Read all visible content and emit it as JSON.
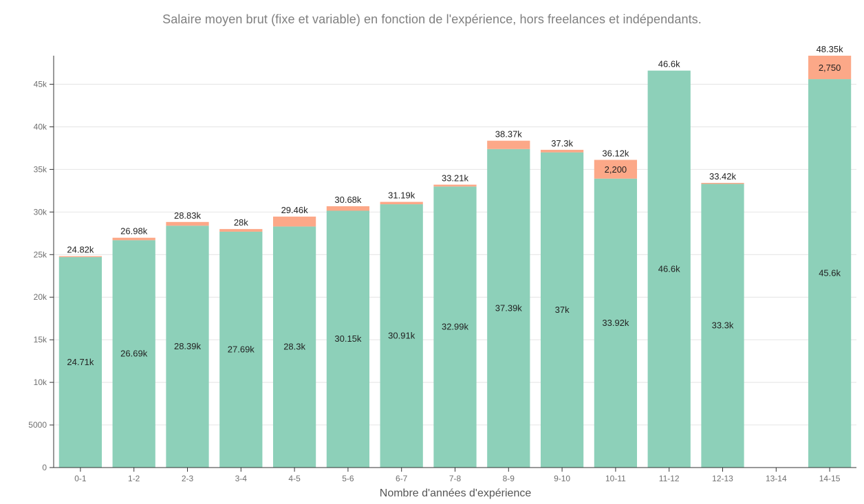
{
  "chart_data": {
    "type": "bar",
    "stacked": true,
    "title": "Salaire moyen brut (fixe et variable) en fonction de l'expérience, hors freelances et indépendants.",
    "xlabel": "Nombre d'années d'expérience",
    "ylabel": "",
    "ylim": [
      0,
      48350
    ],
    "y_ticks": [
      {
        "value": 0,
        "label": "0"
      },
      {
        "value": 5000,
        "label": "5000"
      },
      {
        "value": 10000,
        "label": "10k"
      },
      {
        "value": 15000,
        "label": "15k"
      },
      {
        "value": 20000,
        "label": "20k"
      },
      {
        "value": 25000,
        "label": "25k"
      },
      {
        "value": 30000,
        "label": "30k"
      },
      {
        "value": 35000,
        "label": "35k"
      },
      {
        "value": 40000,
        "label": "40k"
      },
      {
        "value": 45000,
        "label": "45k"
      }
    ],
    "grid": true,
    "colors": {
      "fixed": "#8dd0b9",
      "variable": "#fca888",
      "grid": "#e4e4e4",
      "axis": "#333333"
    },
    "categories": [
      "0-1",
      "1-2",
      "2-3",
      "3-4",
      "4-5",
      "5-6",
      "6-7",
      "7-8",
      "8-9",
      "9-10",
      "10-11",
      "11-12",
      "12-13",
      "13-14",
      "14-15"
    ],
    "series": [
      {
        "key": "fixed",
        "values": [
          24710,
          26690,
          28390,
          27690,
          28300,
          30150,
          30910,
          32990,
          37390,
          37000,
          33920,
          46600,
          33300,
          null,
          45600
        ],
        "labels": [
          "24.71k",
          "26.69k",
          "28.39k",
          "27.69k",
          "28.3k",
          "30.15k",
          "30.91k",
          "32.99k",
          "37.39k",
          "37k",
          "33.92k",
          "46.6k",
          "33.3k",
          "",
          "45.6k"
        ]
      },
      {
        "key": "variable",
        "values": [
          110,
          290,
          440,
          310,
          1160,
          530,
          280,
          220,
          980,
          300,
          2200,
          0,
          120,
          null,
          2750
        ],
        "labels": [
          "",
          "",
          "",
          "",
          "",
          "",
          "",
          "",
          "",
          "",
          "2,200",
          "",
          "",
          "",
          "2,750"
        ]
      }
    ],
    "totals": [
      24820,
      26980,
      28830,
      28000,
      29460,
      30680,
      31190,
      33210,
      38370,
      37300,
      36120,
      46600,
      33420,
      null,
      48350
    ],
    "total_labels": [
      "24.82k",
      "26.98k",
      "28.83k",
      "28k",
      "29.46k",
      "30.68k",
      "31.19k",
      "33.21k",
      "38.37k",
      "37.3k",
      "36.12k",
      "46.6k",
      "33.42k",
      "",
      "48.35k"
    ]
  }
}
